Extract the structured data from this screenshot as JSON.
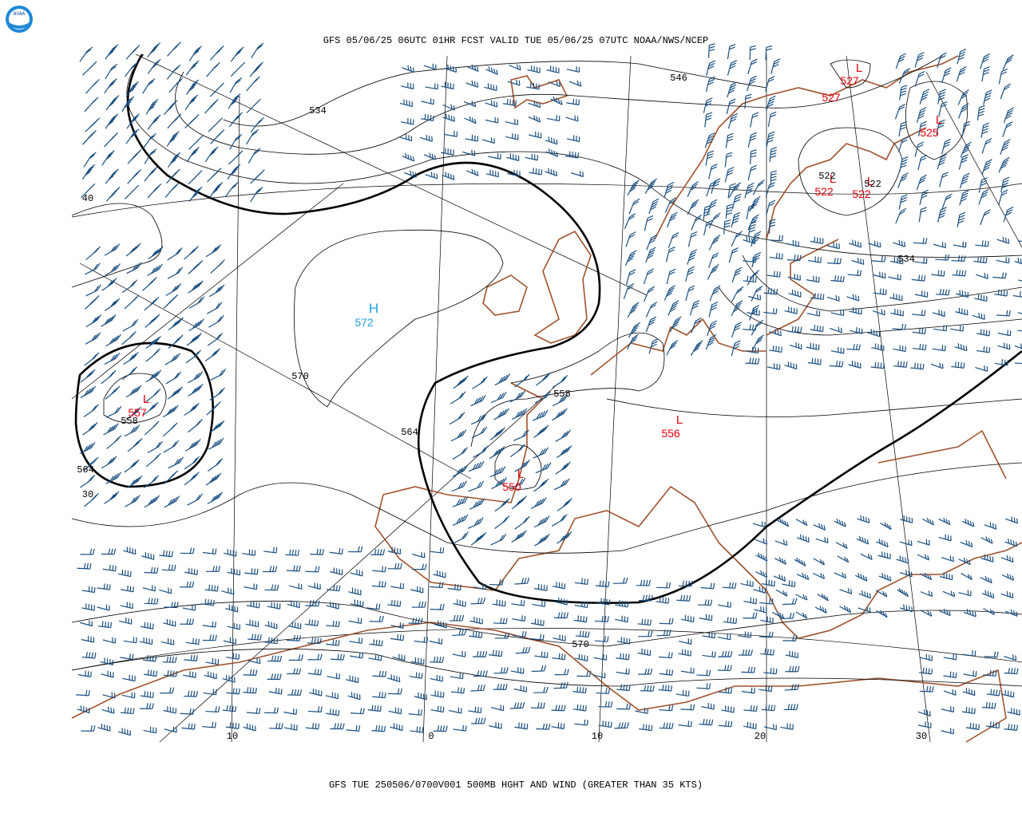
{
  "header": {
    "title": "GFS 05/06/25 06UTC 01HR FCST VALID TUE 05/06/25 07UTC NOAA/NWS/NCEP"
  },
  "footer": {
    "caption": "GFS TUE 250506/0700V001 500MB HGHT AND WIND (GREATER THAN 35 KTS)"
  },
  "logo": {
    "text": "NOAA"
  },
  "centers": [
    {
      "label": "L",
      "value": "557"
    },
    {
      "label": "L",
      "value": "550"
    },
    {
      "label": "L",
      "value": "556"
    },
    {
      "label": "H",
      "value": "572"
    },
    {
      "label": "L",
      "value": "527"
    },
    {
      "label": "L",
      "value": "525"
    },
    {
      "label": "L",
      "value": "522"
    },
    {
      "label": "L",
      "value": "522"
    }
  ],
  "extra_center_values": [
    "527"
  ],
  "contour_labels": [
    "534",
    "546",
    "40",
    "570",
    "558",
    "564",
    "558",
    "564",
    "30",
    "570",
    "534",
    "522",
    "522"
  ],
  "longitude_labels": [
    "10",
    "0",
    "10",
    "20",
    "30"
  ]
}
